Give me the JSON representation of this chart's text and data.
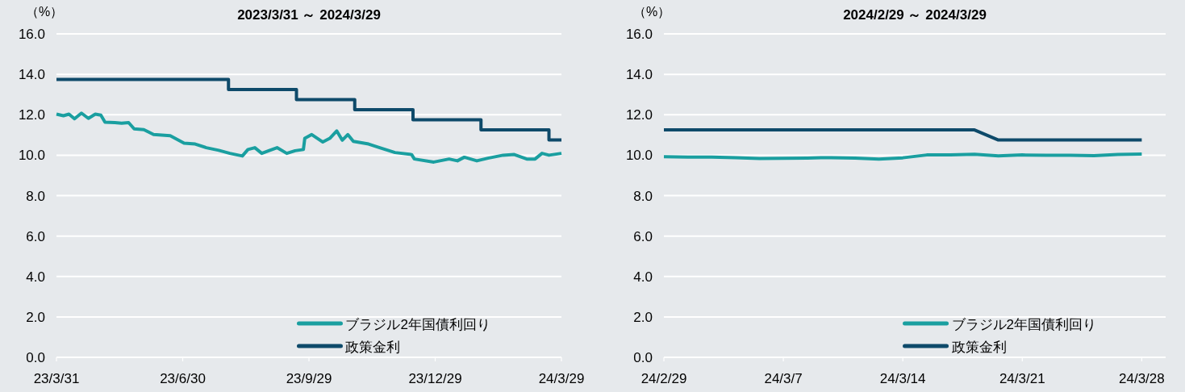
{
  "chart_data": [
    {
      "type": "line",
      "title": "2023/3/31 ～ 2024/3/29",
      "ylabel": "（%）",
      "ylim": [
        0,
        16
      ],
      "yticks": [
        {
          "value": 0,
          "label": "0.0"
        },
        {
          "value": 2,
          "label": "2.0"
        },
        {
          "value": 4,
          "label": "4.0"
        },
        {
          "value": 6,
          "label": "6.0"
        },
        {
          "value": 8,
          "label": "8.0"
        },
        {
          "value": 10,
          "label": "10.0"
        },
        {
          "value": 12,
          "label": "12.0"
        },
        {
          "value": 14,
          "label": "14.0"
        },
        {
          "value": 16,
          "label": "16.0"
        }
      ],
      "xlim": [
        "2023-03-31",
        "2024-03-29"
      ],
      "xticks": [
        {
          "value": "2023-03-31",
          "label": "23/3/31"
        },
        {
          "value": "2023-06-30",
          "label": "23/6/30"
        },
        {
          "value": "2023-09-29",
          "label": "23/9/29"
        },
        {
          "value": "2023-12-29",
          "label": "23/12/29"
        },
        {
          "value": "2024-03-29",
          "label": "24/3/29"
        }
      ],
      "grid": "y",
      "legend": "bottom right",
      "series": [
        {
          "name": "ブラジル2年国債利回り",
          "color": "#1a9fa0",
          "type": "line",
          "x": [
            "2023-03-31",
            "2023-04-05",
            "2023-04-09",
            "2023-04-13",
            "2023-04-18",
            "2023-04-23",
            "2023-04-28",
            "2023-05-02",
            "2023-05-05",
            "2023-05-12",
            "2023-05-17",
            "2023-05-22",
            "2023-05-26",
            "2023-06-02",
            "2023-06-09",
            "2023-06-21",
            "2023-07-01",
            "2023-07-09",
            "2023-07-17",
            "2023-07-26",
            "2023-08-03",
            "2023-08-12",
            "2023-08-16",
            "2023-08-21",
            "2023-08-26",
            "2023-08-31",
            "2023-09-06",
            "2023-09-13",
            "2023-09-19",
            "2023-09-25",
            "2023-09-26",
            "2023-10-01",
            "2023-10-09",
            "2023-10-14",
            "2023-10-19",
            "2023-10-23",
            "2023-10-27",
            "2023-10-31",
            "2023-11-11",
            "2023-11-19",
            "2023-11-30",
            "2023-12-12",
            "2023-12-14",
            "2023-12-28",
            "2024-01-08",
            "2024-01-14",
            "2024-01-19",
            "2024-01-28",
            "2024-02-05",
            "2024-02-16",
            "2024-02-24",
            "2024-03-04",
            "2024-03-10",
            "2024-03-15",
            "2024-03-20",
            "2024-03-29"
          ],
          "values": [
            12.03,
            11.95,
            12.03,
            11.8,
            12.08,
            11.82,
            12.03,
            11.98,
            11.63,
            11.61,
            11.58,
            11.61,
            11.3,
            11.26,
            11.02,
            10.96,
            10.59,
            10.55,
            10.37,
            10.24,
            10.09,
            9.96,
            10.28,
            10.37,
            10.09,
            10.22,
            10.37,
            10.09,
            10.22,
            10.28,
            10.83,
            11.02,
            10.65,
            10.83,
            11.2,
            10.74,
            11.02,
            10.68,
            10.55,
            10.37,
            10.13,
            10.03,
            9.81,
            9.66,
            9.81,
            9.72,
            9.9,
            9.72,
            9.85,
            10.0,
            10.03,
            9.81,
            9.81,
            10.09,
            10.0,
            10.09
          ]
        },
        {
          "name": "政策金利",
          "color": "#0e4a6a",
          "type": "step",
          "x": [
            "2023-03-31",
            "2023-08-02",
            "2023-09-20",
            "2023-11-01",
            "2023-12-13",
            "2024-01-31",
            "2024-03-20",
            "2024-03-29"
          ],
          "values": [
            13.75,
            13.25,
            12.75,
            12.25,
            11.75,
            11.25,
            10.75,
            10.75
          ]
        }
      ]
    },
    {
      "type": "line",
      "title": "2024/2/29 ～ 2024/3/29",
      "ylabel": "（%）",
      "ylim": [
        0,
        16
      ],
      "yticks": [
        {
          "value": 0,
          "label": "0.0"
        },
        {
          "value": 2,
          "label": "2.0"
        },
        {
          "value": 4,
          "label": "4.0"
        },
        {
          "value": 6,
          "label": "6.0"
        },
        {
          "value": 8,
          "label": "8.0"
        },
        {
          "value": 10,
          "label": "10.0"
        },
        {
          "value": 12,
          "label": "12.0"
        },
        {
          "value": 14,
          "label": "14.0"
        },
        {
          "value": 16,
          "label": "16.0"
        }
      ],
      "categories": [
        "24/2/29",
        null,
        null,
        null,
        null,
        "24/3/7",
        null,
        null,
        null,
        null,
        "24/3/14",
        null,
        null,
        null,
        null,
        "24/3/21",
        null,
        null,
        null,
        null,
        "24/3/28"
      ],
      "grid": "y",
      "legend": "bottom right",
      "series": [
        {
          "name": "ブラジル2年国債利回り",
          "color": "#1a9fa0",
          "values": [
            9.93,
            9.91,
            9.91,
            9.88,
            9.84,
            9.85,
            9.86,
            9.88,
            9.86,
            9.81,
            9.87,
            10.01,
            10.01,
            10.04,
            9.97,
            10.01,
            10.0,
            10.0,
            9.98,
            10.03,
            10.05
          ]
        },
        {
          "name": "政策金利",
          "color": "#0e4a6a",
          "values": [
            11.25,
            11.25,
            11.25,
            11.25,
            11.25,
            11.25,
            11.25,
            11.25,
            11.25,
            11.25,
            11.25,
            11.25,
            11.25,
            11.25,
            10.75,
            10.75,
            10.75,
            10.75,
            10.75,
            10.75,
            10.75
          ]
        }
      ]
    }
  ]
}
